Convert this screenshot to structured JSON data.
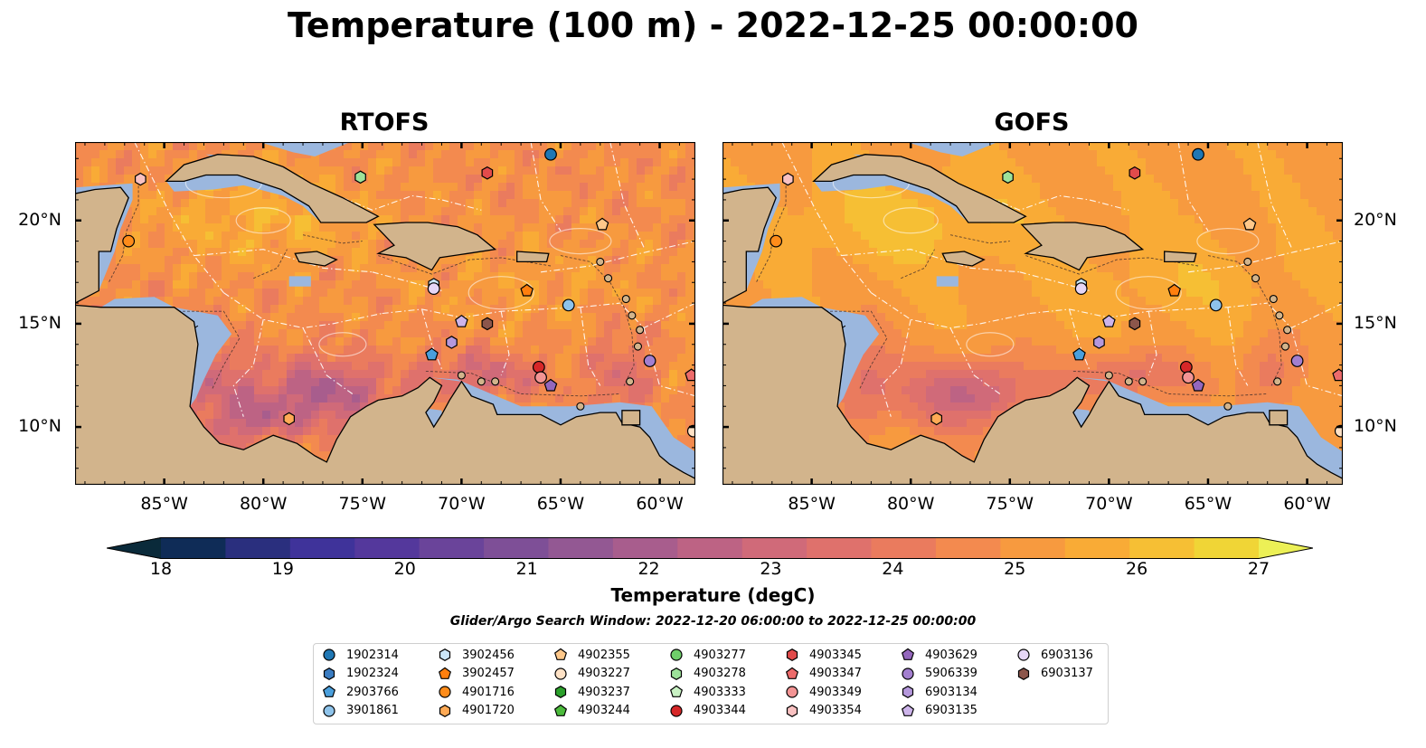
{
  "title": "Temperature (100 m) - 2022-12-25 00:00:00",
  "panels": [
    {
      "name": "RTOFS",
      "variant": "rtofs"
    },
    {
      "name": "GOFS",
      "variant": "gofs"
    }
  ],
  "map": {
    "lon_range": [
      -89.5,
      -58.2
    ],
    "lat_range": [
      7.2,
      23.8
    ],
    "lon_ticks": [
      {
        "value": -85,
        "label": "85°W"
      },
      {
        "value": -80,
        "label": "80°W"
      },
      {
        "value": -75,
        "label": "75°W"
      },
      {
        "value": -70,
        "label": "70°W"
      },
      {
        "value": -65,
        "label": "65°W"
      },
      {
        "value": -60,
        "label": "60°W"
      }
    ],
    "lat_ticks": [
      {
        "value": 20,
        "label": "20°N"
      },
      {
        "value": 15,
        "label": "15°N"
      },
      {
        "value": 10,
        "label": "10°N"
      }
    ],
    "colors": {
      "land": "#d2b48c",
      "shelf": "#9bb7de",
      "coast": "#000000"
    }
  },
  "colorbar": {
    "label": "Temperature (degC)",
    "min": 18,
    "max": 27,
    "step": 0.5,
    "ticks": [
      "18",
      "19",
      "20",
      "21",
      "22",
      "23",
      "24",
      "25",
      "26",
      "27"
    ],
    "colors": [
      "#0a2a3a",
      "#0f2c57",
      "#2a2f7e",
      "#3f339a",
      "#54389c",
      "#6a449a",
      "#7e4f97",
      "#935893",
      "#a85d8d",
      "#bd6384",
      "#d06a79",
      "#df716c",
      "#ea7b5e",
      "#f38a4f",
      "#f79a3f",
      "#f9ab36",
      "#f6bf34",
      "#f0d536",
      "#ecf056"
    ]
  },
  "search_window": "Glider/Argo Search Window: 2022-12-20 06:00:00 to 2022-12-25 00:00:00",
  "legend": [
    {
      "id": "1902314",
      "marker": "circle",
      "color": "#1f77b4"
    },
    {
      "id": "1902324",
      "marker": "hexagon",
      "color": "#3a7cc1"
    },
    {
      "id": "2903766",
      "marker": "pentagon",
      "color": "#4a9fdc"
    },
    {
      "id": "3901861",
      "marker": "circle",
      "color": "#8ec3ea"
    },
    {
      "id": "3902456",
      "marker": "hexagon",
      "color": "#cbe6f7"
    },
    {
      "id": "3902457",
      "marker": "pentagon",
      "color": "#ff7f0e"
    },
    {
      "id": "4901716",
      "marker": "circle",
      "color": "#ff8c1a"
    },
    {
      "id": "4901720",
      "marker": "hexagon",
      "color": "#ffaa55"
    },
    {
      "id": "4902355",
      "marker": "pentagon",
      "color": "#ffc88a"
    },
    {
      "id": "4903227",
      "marker": "circle",
      "color": "#ffe2c6"
    },
    {
      "id": "4903237",
      "marker": "hexagon",
      "color": "#2ca02c"
    },
    {
      "id": "4903244",
      "marker": "pentagon",
      "color": "#4cbb3c"
    },
    {
      "id": "4903277",
      "marker": "circle",
      "color": "#6fcf6a"
    },
    {
      "id": "4903278",
      "marker": "hexagon",
      "color": "#9de29a"
    },
    {
      "id": "4903333",
      "marker": "pentagon",
      "color": "#c9f2c4"
    },
    {
      "id": "4903344",
      "marker": "circle",
      "color": "#d62728"
    },
    {
      "id": "4903345",
      "marker": "hexagon",
      "color": "#e24b4b"
    },
    {
      "id": "4903347",
      "marker": "pentagon",
      "color": "#ed6b6b"
    },
    {
      "id": "4903349",
      "marker": "circle",
      "color": "#f39494"
    },
    {
      "id": "4903354",
      "marker": "hexagon",
      "color": "#f9c1c1"
    },
    {
      "id": "4903629",
      "marker": "pentagon",
      "color": "#9467bd"
    },
    {
      "id": "5906339",
      "marker": "circle",
      "color": "#a37fcf"
    },
    {
      "id": "6903134",
      "marker": "hexagon",
      "color": "#b598dc"
    },
    {
      "id": "6903135",
      "marker": "pentagon",
      "color": "#cdb4ea"
    },
    {
      "id": "6903136",
      "marker": "circle",
      "color": "#e6d6f6"
    },
    {
      "id": "6903137",
      "marker": "hexagon",
      "color": "#8c564b"
    }
  ],
  "floats": [
    {
      "id": "1902314",
      "lon": -65.5,
      "lat": 23.2
    },
    {
      "id": "4903278",
      "lon": -75.1,
      "lat": 22.1
    },
    {
      "id": "4903345",
      "lon": -68.7,
      "lat": 22.3
    },
    {
      "id": "4903354",
      "lon": -86.2,
      "lat": 22.0
    },
    {
      "id": "4902355",
      "lon": -62.9,
      "lat": 19.8
    },
    {
      "id": "4901716",
      "lon": -86.8,
      "lat": 19.0
    },
    {
      "id": "3902456",
      "lon": -71.4,
      "lat": 16.9
    },
    {
      "id": "6903136",
      "lon": -71.4,
      "lat": 16.7
    },
    {
      "id": "3902457",
      "lon": -66.7,
      "lat": 16.6
    },
    {
      "id": "3901861",
      "lon": -64.6,
      "lat": 15.9
    },
    {
      "id": "6903135",
      "lon": -70.0,
      "lat": 15.1
    },
    {
      "id": "6903137",
      "lon": -68.7,
      "lat": 15.0
    },
    {
      "id": "6903134",
      "lon": -70.5,
      "lat": 14.1
    },
    {
      "id": "2903766",
      "lon": -71.5,
      "lat": 13.5
    },
    {
      "id": "5906339",
      "lon": -60.5,
      "lat": 13.2
    },
    {
      "id": "4903344",
      "lon": -66.1,
      "lat": 12.9
    },
    {
      "id": "4903349",
      "lon": -66.0,
      "lat": 12.4
    },
    {
      "id": "4903347",
      "lon": -58.4,
      "lat": 12.5
    },
    {
      "id": "4903629",
      "lon": -65.5,
      "lat": 12.0
    },
    {
      "id": "4901720",
      "lon": -78.7,
      "lat": 10.4
    },
    {
      "id": "4903227",
      "lon": -58.3,
      "lat": 9.8
    }
  ]
}
